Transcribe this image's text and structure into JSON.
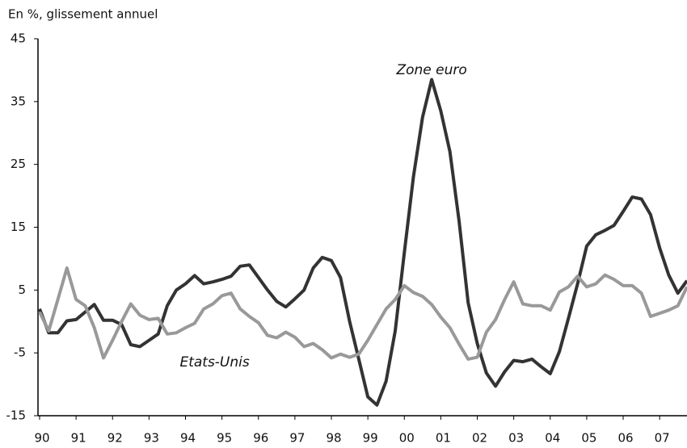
{
  "chart_data": {
    "type": "line",
    "y_label": "En %, glissement annuel",
    "annotations": [
      {
        "text": "Zone euro",
        "x": 2000.75,
        "y": 40
      },
      {
        "text": "Etats-Unis",
        "x": 1994.8,
        "y": -6.5
      }
    ],
    "x": [
      1990,
      1990.25,
      1990.5,
      1990.75,
      1991,
      1991.25,
      1991.5,
      1991.75,
      1992,
      1992.25,
      1992.5,
      1992.75,
      1993,
      1993.25,
      1993.5,
      1993.75,
      1994,
      1994.25,
      1994.5,
      1994.75,
      1995,
      1995.25,
      1995.5,
      1995.75,
      1996,
      1996.25,
      1996.5,
      1996.75,
      1997,
      1997.25,
      1997.5,
      1997.75,
      1998,
      1998.25,
      1998.5,
      1998.75,
      1999,
      1999.25,
      1999.5,
      1999.75,
      2000,
      2000.25,
      2000.5,
      2000.75,
      2001,
      2001.25,
      2001.5,
      2001.75,
      2002,
      2002.25,
      2002.5,
      2002.75,
      2003,
      2003.25,
      2003.5,
      2003.75,
      2004,
      2004.25,
      2004.5,
      2004.75,
      2005,
      2005.25,
      2005.5,
      2005.75,
      2006,
      2006.25,
      2006.5,
      2006.75,
      2007,
      2007.25,
      2007.5,
      2007.75
    ],
    "series": [
      {
        "name": "Zone euro",
        "color": "#333333",
        "values": [
          2,
          -1.8,
          -1.8,
          0.1,
          0.3,
          1.5,
          2.7,
          0.2,
          0.2,
          -0.5,
          -3.7,
          -4,
          -3,
          -2,
          2.5,
          5,
          6,
          7.3,
          6,
          6.3,
          6.7,
          7.2,
          8.8,
          9,
          7,
          5,
          3.2,
          2.3,
          3.6,
          5,
          8.5,
          10.2,
          9.7,
          7,
          0,
          -6,
          -12,
          -13.3,
          -9.5,
          -1.5,
          11,
          23,
          32.5,
          38.5,
          33.5,
          27,
          16,
          3,
          -3.5,
          -8.2,
          -10.3,
          -8,
          -6.2,
          -6.4,
          -6,
          -7.2,
          -8.3,
          -4.8,
          0.5,
          6,
          12,
          13.8,
          14.5,
          15.3,
          17.5,
          19.8,
          19.5,
          17,
          11.7,
          7.4,
          4.5,
          6.5
        ]
      },
      {
        "name": "Etats-Unis",
        "color": "#999999",
        "values": [
          1.5,
          -1.5,
          3.5,
          8.5,
          3.5,
          2.5,
          -1,
          -5.8,
          -3,
          0,
          2.8,
          1,
          0.3,
          0.5,
          -2,
          -1.8,
          -1,
          -0.3,
          2,
          2.8,
          4.1,
          4.5,
          2,
          0.8,
          -0.2,
          -2.2,
          -2.6,
          -1.7,
          -2.5,
          -4,
          -3.5,
          -4.5,
          -5.8,
          -5.2,
          -5.7,
          -5.2,
          -3,
          -0.5,
          2,
          3.5,
          5.7,
          4.6,
          4,
          2.7,
          0.7,
          -1,
          -3.6,
          -6,
          -5.7,
          -1.7,
          0.3,
          3.5,
          6.3,
          2.8,
          2.5,
          2.5,
          1.8,
          4.7,
          5.5,
          7.2,
          5.5,
          6,
          7.4,
          6.7,
          5.7,
          5.7,
          4.5,
          0.8,
          1.3,
          1.8,
          2.5,
          5.5
        ]
      }
    ],
    "xlim": [
      1990,
      2007.75
    ],
    "xticks": [
      {
        "value": 1990,
        "label": "90"
      },
      {
        "value": 1991,
        "label": "91"
      },
      {
        "value": 1992,
        "label": "92"
      },
      {
        "value": 1993,
        "label": "93"
      },
      {
        "value": 1994,
        "label": "94"
      },
      {
        "value": 1995,
        "label": "95"
      },
      {
        "value": 1996,
        "label": "96"
      },
      {
        "value": 1997,
        "label": "97"
      },
      {
        "value": 1998,
        "label": "98"
      },
      {
        "value": 1999,
        "label": "99"
      },
      {
        "value": 2000,
        "label": "00"
      },
      {
        "value": 2001,
        "label": "01"
      },
      {
        "value": 2002,
        "label": "02"
      },
      {
        "value": 2003,
        "label": "03"
      },
      {
        "value": 2004,
        "label": "04"
      },
      {
        "value": 2005,
        "label": "05"
      },
      {
        "value": 2006,
        "label": "06"
      },
      {
        "value": 2007,
        "label": "07"
      }
    ],
    "ylim": [
      -15,
      45
    ],
    "yticks": [
      -15,
      -5,
      5,
      15,
      25,
      35,
      45
    ],
    "grid": false
  }
}
